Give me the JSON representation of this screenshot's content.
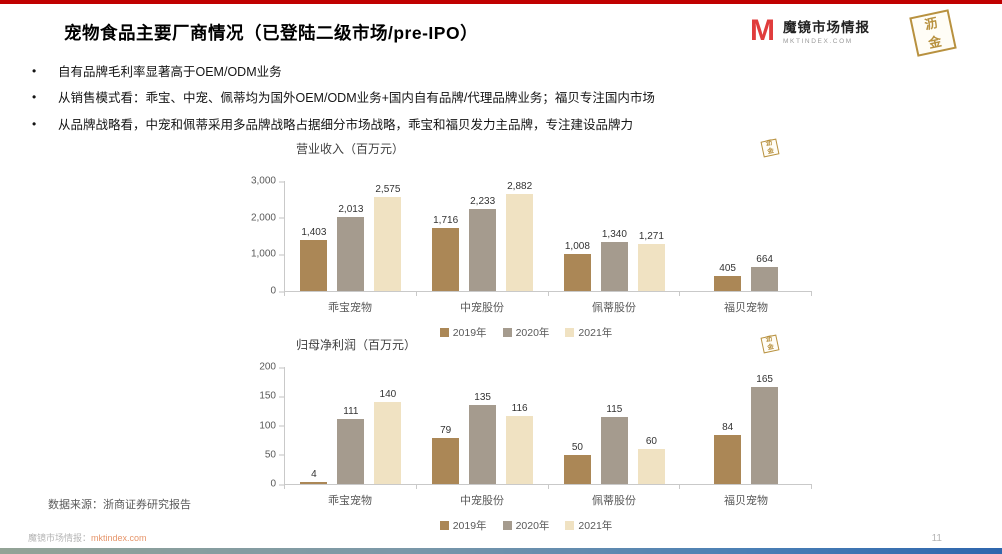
{
  "slide": {
    "title": "宠物食品主要厂商情况（已登陆二级市场/pre-IPO）",
    "bullets": [
      "自有品牌毛利率显著高于OEM/ODM业务",
      "从销售模式看：乖宝、中宠、佩蒂均为国外OEM/ODM业务+国内自有品牌/代理品牌业务；福贝专注国内市场",
      "从品牌战略看，中宠和佩蒂采用多品牌战略占据细分市场战略，乖宝和福贝发力主品牌，专注建设品牌力"
    ],
    "source_note": "数据来源：浙商证券研究报告",
    "footer": {
      "brand": "魔镜市场情报：",
      "link": "mktindex.com",
      "page": "11"
    }
  },
  "logos": {
    "mojing": {
      "mark": "M",
      "name": "魔镜市场情报",
      "domain": "MKTINDEX.COM"
    },
    "lijin": {
      "char1": "沥",
      "char2": "金"
    }
  },
  "colors": {
    "accent_red": "#c00000",
    "series": [
      "#ab8756",
      "#a59b8e",
      "#f0e2c2"
    ]
  },
  "chart_data": [
    {
      "type": "bar",
      "title": "营业收入（百万元）",
      "categories": [
        "乖宝宠物",
        "中宠股份",
        "佩蒂股份",
        "福贝宠物"
      ],
      "series": [
        {
          "name": "2019年",
          "values": [
            1403,
            1716,
            1008,
            405
          ],
          "labels": [
            "1,403",
            "1,716",
            "1,008",
            "405"
          ]
        },
        {
          "name": "2020年",
          "values": [
            2013,
            2233,
            1340,
            664
          ],
          "labels": [
            "2,013",
            "2,233",
            "1,340",
            "664"
          ]
        },
        {
          "name": "2021年",
          "values": [
            2575,
            2882,
            1271,
            null
          ],
          "labels": [
            "2,575",
            "2,882",
            "1,271",
            ""
          ]
        }
      ],
      "ylim": [
        0,
        3000
      ],
      "yticks": [
        {
          "v": 0,
          "label": "0"
        },
        {
          "v": 1000,
          "label": "1,000"
        },
        {
          "v": 2000,
          "label": "2,000"
        },
        {
          "v": 3000,
          "label": "3,000"
        }
      ],
      "grid": false,
      "legend_position": "bottom"
    },
    {
      "type": "bar",
      "title": "归母净利润（百万元）",
      "categories": [
        "乖宝宠物",
        "中宠股份",
        "佩蒂股份",
        "福贝宠物"
      ],
      "series": [
        {
          "name": "2019年",
          "values": [
            4,
            79,
            50,
            84
          ],
          "labels": [
            "4",
            "79",
            "50",
            "84"
          ]
        },
        {
          "name": "2020年",
          "values": [
            111,
            135,
            115,
            165
          ],
          "labels": [
            "111",
            "135",
            "115",
            "165"
          ]
        },
        {
          "name": "2021年",
          "values": [
            140,
            116,
            60,
            null
          ],
          "labels": [
            "140",
            "116",
            "60",
            ""
          ]
        }
      ],
      "ylim": [
        0,
        200
      ],
      "yticks": [
        {
          "v": 0,
          "label": "0"
        },
        {
          "v": 50,
          "label": "50"
        },
        {
          "v": 100,
          "label": "100"
        },
        {
          "v": 150,
          "label": "150"
        },
        {
          "v": 200,
          "label": "200"
        }
      ],
      "grid": false,
      "legend_position": "bottom"
    }
  ]
}
